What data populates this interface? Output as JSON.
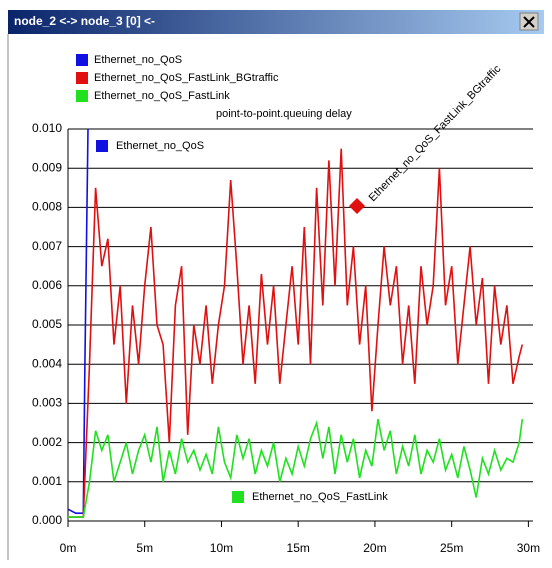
{
  "chart_data": {
    "type": "line",
    "title": "node_2 <-> node_3 [0] <-",
    "subtitle": "point-to-point.queuing delay",
    "xlim": [
      0,
      30.3
    ],
    "ylim": [
      0,
      0.01
    ],
    "xticks": [
      {
        "value": 0,
        "label": "0m"
      },
      {
        "value": 5,
        "label": "5m"
      },
      {
        "value": 10,
        "label": "10m"
      },
      {
        "value": 15,
        "label": "15m"
      },
      {
        "value": 20,
        "label": "20m"
      },
      {
        "value": 25,
        "label": "25m"
      },
      {
        "value": 30,
        "label": "30m"
      }
    ],
    "yticks": [
      {
        "value": 0,
        "label": "0.000"
      },
      0.001,
      0.002,
      0.003,
      0.004,
      0.005,
      0.006,
      0.007,
      0.008,
      0.009,
      {
        "value": 0.01,
        "label": "0.010"
      }
    ],
    "grid": true,
    "series": [
      {
        "name": "Ethernet_no_QoS",
        "color": "#1010e0",
        "x": [
          0,
          0.5,
          1.0,
          1.1,
          1.3
        ],
        "values": [
          0.0003,
          0.0002,
          0.0002,
          0.004,
          0.01
        ]
      },
      {
        "name": "Ethernet_no_QoS_FastLink_BGtraffic",
        "color": "#e01010",
        "x": [
          0,
          1.0,
          1.4,
          1.8,
          2.2,
          2.6,
          3.0,
          3.4,
          3.8,
          4.2,
          4.6,
          5.0,
          5.4,
          5.8,
          6.2,
          6.6,
          7.0,
          7.4,
          7.8,
          8.2,
          8.6,
          9.0,
          9.4,
          9.8,
          10.2,
          10.6,
          11.0,
          11.4,
          11.8,
          12.2,
          12.6,
          13.0,
          13.4,
          13.8,
          14.2,
          14.6,
          15.0,
          15.4,
          15.8,
          16.2,
          16.6,
          17.0,
          17.4,
          17.8,
          18.2,
          18.6,
          19.0,
          19.4,
          19.8,
          20.2,
          20.6,
          21.0,
          21.4,
          21.8,
          22.2,
          22.6,
          23.0,
          23.4,
          23.8,
          24.2,
          24.6,
          25.0,
          25.4,
          25.8,
          26.2,
          26.6,
          27.0,
          27.4,
          27.8,
          28.2,
          28.6,
          29.0,
          29.4,
          29.6
        ],
        "values": [
          0.0001,
          0.0001,
          0.004,
          0.0085,
          0.0065,
          0.0072,
          0.0045,
          0.006,
          0.003,
          0.0055,
          0.004,
          0.006,
          0.0075,
          0.005,
          0.0045,
          0.002,
          0.0055,
          0.0065,
          0.0022,
          0.005,
          0.004,
          0.0055,
          0.0035,
          0.005,
          0.006,
          0.0087,
          0.0065,
          0.004,
          0.0055,
          0.0035,
          0.0063,
          0.0045,
          0.006,
          0.0035,
          0.005,
          0.0065,
          0.0045,
          0.0075,
          0.004,
          0.0085,
          0.0055,
          0.0092,
          0.006,
          0.0095,
          0.0055,
          0.007,
          0.0045,
          0.006,
          0.0028,
          0.005,
          0.007,
          0.0055,
          0.0065,
          0.004,
          0.0055,
          0.0035,
          0.0065,
          0.005,
          0.006,
          0.009,
          0.0055,
          0.0065,
          0.004,
          0.0055,
          0.007,
          0.005,
          0.0062,
          0.0035,
          0.006,
          0.0045,
          0.0055,
          0.0035,
          0.0042,
          0.0045
        ]
      },
      {
        "name": "Ethernet_no_QoS_FastLink",
        "color": "#20e020",
        "x": [
          0,
          1.0,
          1.4,
          1.8,
          2.2,
          2.6,
          3.0,
          3.4,
          3.8,
          4.2,
          4.6,
          5.0,
          5.4,
          5.8,
          6.2,
          6.6,
          7.0,
          7.4,
          7.8,
          8.2,
          8.6,
          9.0,
          9.4,
          9.8,
          10.2,
          10.6,
          11.0,
          11.4,
          11.8,
          12.2,
          12.6,
          13.0,
          13.4,
          13.8,
          14.2,
          14.6,
          15.0,
          15.4,
          15.8,
          16.2,
          16.6,
          17.0,
          17.4,
          17.8,
          18.2,
          18.6,
          19.0,
          19.4,
          19.8,
          20.2,
          20.6,
          21.0,
          21.4,
          21.8,
          22.2,
          22.6,
          23.0,
          23.4,
          23.8,
          24.2,
          24.6,
          25.0,
          25.4,
          25.8,
          26.2,
          26.6,
          27.0,
          27.4,
          27.8,
          28.2,
          28.6,
          29.0,
          29.4,
          29.6
        ],
        "values": [
          0.0001,
          0.0001,
          0.001,
          0.0023,
          0.0018,
          0.0022,
          0.001,
          0.0015,
          0.002,
          0.0012,
          0.0018,
          0.0022,
          0.0015,
          0.0024,
          0.001,
          0.0018,
          0.0012,
          0.0021,
          0.0015,
          0.0018,
          0.0013,
          0.0017,
          0.0012,
          0.0024,
          0.0015,
          0.0011,
          0.0022,
          0.0016,
          0.0021,
          0.0012,
          0.0018,
          0.0014,
          0.002,
          0.001,
          0.0016,
          0.0012,
          0.0019,
          0.0014,
          0.0021,
          0.0025,
          0.0016,
          0.0024,
          0.0012,
          0.0022,
          0.0015,
          0.0021,
          0.0011,
          0.0018,
          0.0014,
          0.0026,
          0.0018,
          0.0023,
          0.0012,
          0.0019,
          0.0014,
          0.0022,
          0.0012,
          0.0018,
          0.0015,
          0.0021,
          0.0013,
          0.0017,
          0.0011,
          0.0019,
          0.0013,
          0.0006,
          0.0016,
          0.0012,
          0.0018,
          0.0013,
          0.0016,
          0.0015,
          0.002,
          0.0026
        ]
      }
    ]
  }
}
